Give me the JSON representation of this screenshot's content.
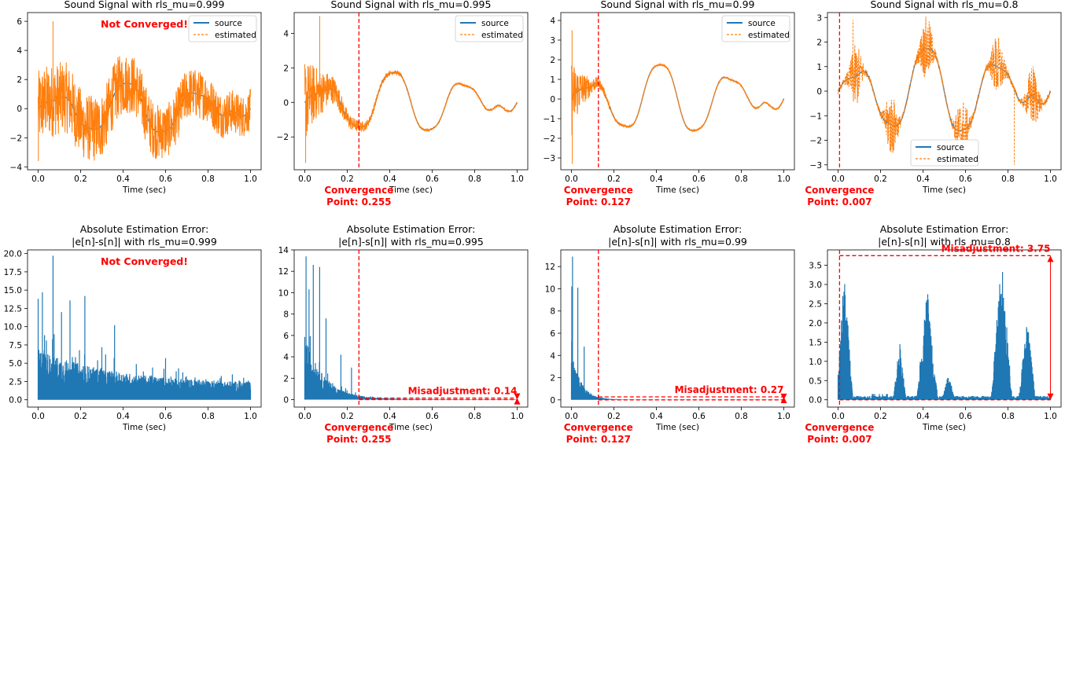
{
  "figure": {
    "x_axis_label": "Time (sec)",
    "x_tick_labels": [
      "0.0",
      "0.2",
      "0.4",
      "0.6",
      "0.8",
      "1.0"
    ],
    "legend_labels": [
      "source",
      "estimated"
    ],
    "not_converged_text": "Not Converged!",
    "convergence_line1": "Convergence",
    "colors": {
      "source": "#1f77b4",
      "estimated": "#ff7f0e",
      "annotation": "#ff0000"
    }
  },
  "chart_data": [
    {
      "type": "line",
      "panel": "signal",
      "title": "Sound Signal with rls_mu=0.999",
      "xlabel": "Time (sec)",
      "ylabel": "",
      "xlim": [
        -0.05,
        1.05
      ],
      "ylim": [
        -4.2,
        6.6
      ],
      "y_ticks": [
        -4,
        -2,
        0,
        2,
        4,
        6
      ],
      "y_tick_labels": [
        "−4",
        "−2",
        "0",
        "2",
        "4",
        "6"
      ],
      "legend": "top-right",
      "series": [
        {
          "name": "source"
        },
        {
          "name": "estimated"
        }
      ],
      "noise": {
        "start": 2.6,
        "end": 1.4,
        "tau": 2.0,
        "floor": 0
      },
      "noise_peaks": [
        {
          "x": 0.07,
          "y": 6.0
        },
        {
          "x": 0.001,
          "y": -3.6
        }
      ],
      "converged": false,
      "annotation": "Not Converged!"
    },
    {
      "type": "line",
      "panel": "signal",
      "title": "Sound Signal with rls_mu=0.995",
      "xlabel": "Time (sec)",
      "ylabel": "",
      "xlim": [
        -0.05,
        1.05
      ],
      "ylim": [
        -3.9,
        5.2
      ],
      "y_ticks": [
        -2,
        0,
        2,
        4
      ],
      "y_tick_labels": [
        "−2",
        "0",
        "2",
        "4"
      ],
      "legend": "top-right",
      "series": [
        {
          "name": "source"
        },
        {
          "name": "estimated"
        }
      ],
      "noise": {
        "start": 2.4,
        "end": 0.1,
        "tau": 0.12,
        "floor": 0.05
      },
      "noise_peaks": [
        {
          "x": 0.07,
          "y": 5.0
        },
        {
          "x": 0.004,
          "y": -3.5
        }
      ],
      "converged": true,
      "convergence_point": 0.255,
      "convergence_label": "Point: 0.255"
    },
    {
      "type": "line",
      "panel": "signal",
      "title": "Sound Signal with rls_mu=0.99",
      "xlabel": "Time (sec)",
      "ylabel": "",
      "xlim": [
        -0.05,
        1.05
      ],
      "ylim": [
        -3.6,
        4.4
      ],
      "y_ticks": [
        -3,
        -2,
        -1,
        0,
        1,
        2,
        3,
        4
      ],
      "y_tick_labels": [
        "−3",
        "−2",
        "−1",
        "0",
        "1",
        "2",
        "3",
        "4"
      ],
      "legend": "top-right",
      "series": [
        {
          "name": "source"
        },
        {
          "name": "estimated"
        }
      ],
      "noise": {
        "start": 2.0,
        "end": 0.05,
        "tau": 0.06,
        "floor": 0.04
      },
      "noise_peaks": [
        {
          "x": 0.003,
          "y": 3.5
        },
        {
          "x": 0.004,
          "y": -3.3
        }
      ],
      "converged": true,
      "convergence_point": 0.127,
      "convergence_label": "Point: 0.127"
    },
    {
      "type": "line",
      "panel": "signal",
      "title": "Sound Signal with rls_mu=0.8",
      "xlabel": "Time (sec)",
      "ylabel": "",
      "xlim": [
        -0.05,
        1.05
      ],
      "ylim": [
        -3.2,
        3.2
      ],
      "y_ticks": [
        -3,
        -2,
        -1,
        0,
        1,
        2,
        3
      ],
      "y_tick_labels": [
        "−3",
        "−2",
        "−1",
        "0",
        "1",
        "2",
        "3"
      ],
      "legend": "bottom-center",
      "series": [
        {
          "name": "source"
        },
        {
          "name": "estimated"
        }
      ],
      "noise": {
        "start": 0.1,
        "end": 0.1,
        "tau": 1,
        "floor": 0
      },
      "noise_peaks": [
        {
          "x": 0.07,
          "y": 2.9
        },
        {
          "x": 0.83,
          "y": -3.0
        }
      ],
      "converged": true,
      "convergence_point": 0.007,
      "convergence_label": "Point: 0.007"
    },
    {
      "type": "area",
      "panel": "error",
      "title": "Absolute Estimation Error:\n|e[n]-s[n]| with rls_mu=0.999",
      "xlabel": "Time (sec)",
      "ylabel": "",
      "xlim": [
        -0.05,
        1.05
      ],
      "ylim": [
        -1.0,
        20.5
      ],
      "y_ticks": [
        0,
        2.5,
        5,
        7.5,
        10,
        12.5,
        15,
        17.5,
        20
      ],
      "y_tick_labels": [
        "0.0",
        "2.5",
        "5.0",
        "7.5",
        "10.0",
        "12.5",
        "15.0",
        "17.5",
        "20.0"
      ],
      "series": [
        {
          "name": "|e[n]-s[n]|"
        }
      ],
      "envelope": {
        "start": 7.0,
        "end": 2.2,
        "tau": 0.35
      },
      "spikes": [
        {
          "x": 0.0,
          "y": 13.8
        },
        {
          "x": 0.02,
          "y": 14.7
        },
        {
          "x": 0.07,
          "y": 19.7
        },
        {
          "x": 0.11,
          "y": 12.0
        },
        {
          "x": 0.15,
          "y": 13.6
        },
        {
          "x": 0.22,
          "y": 14.2
        },
        {
          "x": 0.36,
          "y": 10.2
        },
        {
          "x": 0.3,
          "y": 7.2
        },
        {
          "x": 0.6,
          "y": 5.7
        }
      ],
      "converged": false,
      "annotation": "Not Converged!"
    },
    {
      "type": "area",
      "panel": "error",
      "title": "Absolute Estimation Error:\n|e[n]-s[n]| with rls_mu=0.995",
      "xlabel": "Time (sec)",
      "ylabel": "",
      "xlim": [
        -0.05,
        1.05
      ],
      "ylim": [
        -0.7,
        14.0
      ],
      "y_ticks": [
        0,
        2,
        4,
        6,
        8,
        10,
        12,
        14
      ],
      "y_tick_labels": [
        "0",
        "2",
        "4",
        "6",
        "8",
        "10",
        "12",
        "14"
      ],
      "series": [
        {
          "name": "|e[n]-s[n]|"
        }
      ],
      "envelope": {
        "start": 6.0,
        "end": 0.04,
        "tau": 0.09
      },
      "spikes": [
        {
          "x": 0.006,
          "y": 13.4
        },
        {
          "x": 0.02,
          "y": 10.3
        },
        {
          "x": 0.04,
          "y": 12.6
        },
        {
          "x": 0.07,
          "y": 12.4
        },
        {
          "x": 0.1,
          "y": 7.6
        },
        {
          "x": 0.17,
          "y": 4.2
        },
        {
          "x": 0.22,
          "y": 3.0
        }
      ],
      "converged": true,
      "convergence_point": 0.255,
      "convergence_label": "Point: 0.255",
      "misadjustment": 0.14,
      "misadjustment_label": "Misadjustment: 0.14"
    },
    {
      "type": "area",
      "panel": "error",
      "title": "Absolute Estimation Error:\n|e[n]-s[n]| with rls_mu=0.99",
      "xlabel": "Time (sec)",
      "ylabel": "",
      "xlim": [
        -0.05,
        1.05
      ],
      "ylim": [
        -0.65,
        13.5
      ],
      "y_ticks": [
        0,
        2,
        4,
        6,
        8,
        10,
        12
      ],
      "y_tick_labels": [
        "0",
        "2",
        "4",
        "6",
        "8",
        "10",
        "12"
      ],
      "series": [
        {
          "name": "|e[n]-s[n]|"
        }
      ],
      "envelope": {
        "start": 4.5,
        "end": 0.02,
        "tau": 0.045
      },
      "spikes": [
        {
          "x": 0.005,
          "y": 12.9
        },
        {
          "x": 0.002,
          "y": 10.2
        },
        {
          "x": 0.03,
          "y": 10.1
        },
        {
          "x": 0.06,
          "y": 4.8
        }
      ],
      "converged": true,
      "convergence_point": 0.127,
      "convergence_label": "Point: 0.127",
      "misadjustment": 0.27,
      "misadjustment_label": "Misadjustment: 0.27"
    },
    {
      "type": "area",
      "panel": "error",
      "title": "Absolute Estimation Error:\n|e[n]-s[n]| with rls_mu=0.8",
      "xlabel": "Time (sec)",
      "ylabel": "",
      "xlim": [
        -0.05,
        1.05
      ],
      "ylim": [
        -0.19,
        3.9
      ],
      "y_ticks": [
        0,
        0.5,
        1,
        1.5,
        2,
        2.5,
        3,
        3.5
      ],
      "y_tick_labels": [
        "0.0",
        "0.5",
        "1.0",
        "1.5",
        "2.0",
        "2.5",
        "3.0",
        "3.5"
      ],
      "series": [
        {
          "name": "|e[n]-s[n]|"
        }
      ],
      "bursts": [
        {
          "x": 0.03,
          "w": 0.04,
          "h": 3.4
        },
        {
          "x": 0.29,
          "w": 0.03,
          "h": 1.6
        },
        {
          "x": 0.42,
          "w": 0.05,
          "h": 3.0
        },
        {
          "x": 0.52,
          "w": 0.03,
          "h": 0.7
        },
        {
          "x": 0.77,
          "w": 0.05,
          "h": 3.75
        },
        {
          "x": 0.89,
          "w": 0.04,
          "h": 2.2
        }
      ],
      "converged": true,
      "convergence_point": 0.007,
      "convergence_label": "Point: 0.007",
      "misadjustment": 3.75,
      "misadjustment_label": "Misadjustment: 3.75"
    }
  ]
}
